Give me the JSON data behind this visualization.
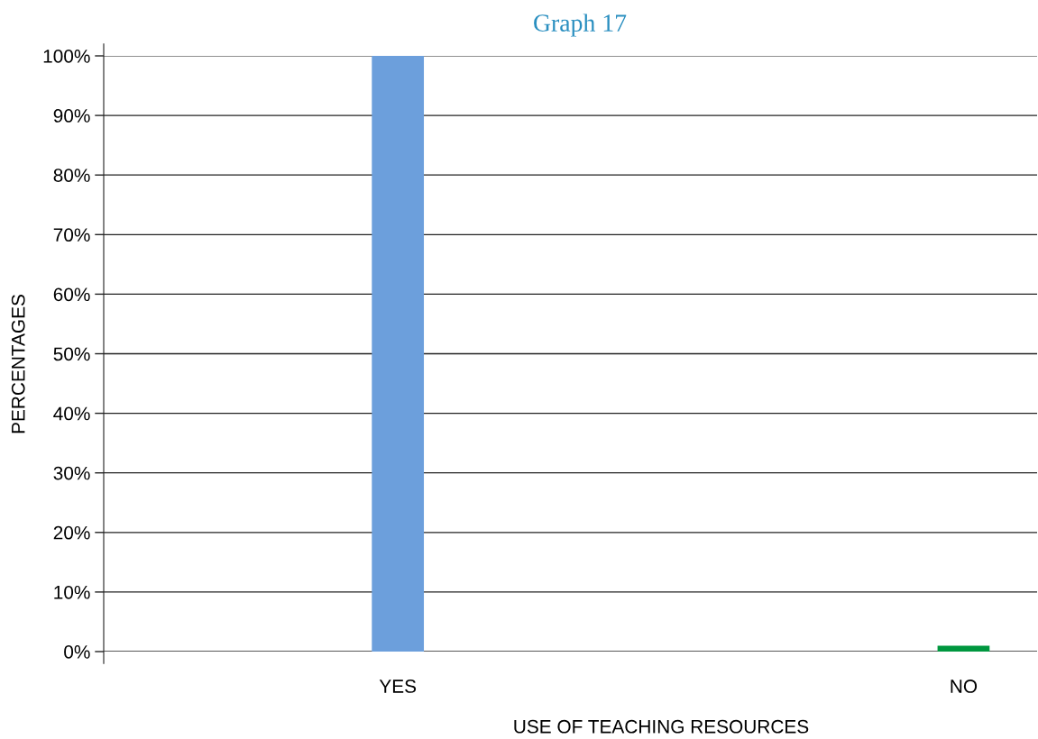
{
  "chart_data": {
    "type": "bar",
    "title": "Graph 17",
    "xlabel": "USE OF TEACHING RESOURCES",
    "ylabel": "PERCENTAGES",
    "categories": [
      "YES",
      "NO"
    ],
    "values": [
      100,
      1
    ],
    "colors": [
      "#6c9fdc",
      "#00973f"
    ],
    "ylim": [
      0,
      100
    ],
    "yticks": [
      {
        "value": 0,
        "label": "0%"
      },
      {
        "value": 10,
        "label": "10%"
      },
      {
        "value": 20,
        "label": "20%"
      },
      {
        "value": 30,
        "label": "30%"
      },
      {
        "value": 40,
        "label": "40%"
      },
      {
        "value": 50,
        "label": "50%"
      },
      {
        "value": 60,
        "label": "60%"
      },
      {
        "value": 70,
        "label": "70%"
      },
      {
        "value": 80,
        "label": "80%"
      },
      {
        "value": 90,
        "label": "90%"
      },
      {
        "value": 100,
        "label": "100%"
      }
    ],
    "grid": "y",
    "legend": false
  }
}
